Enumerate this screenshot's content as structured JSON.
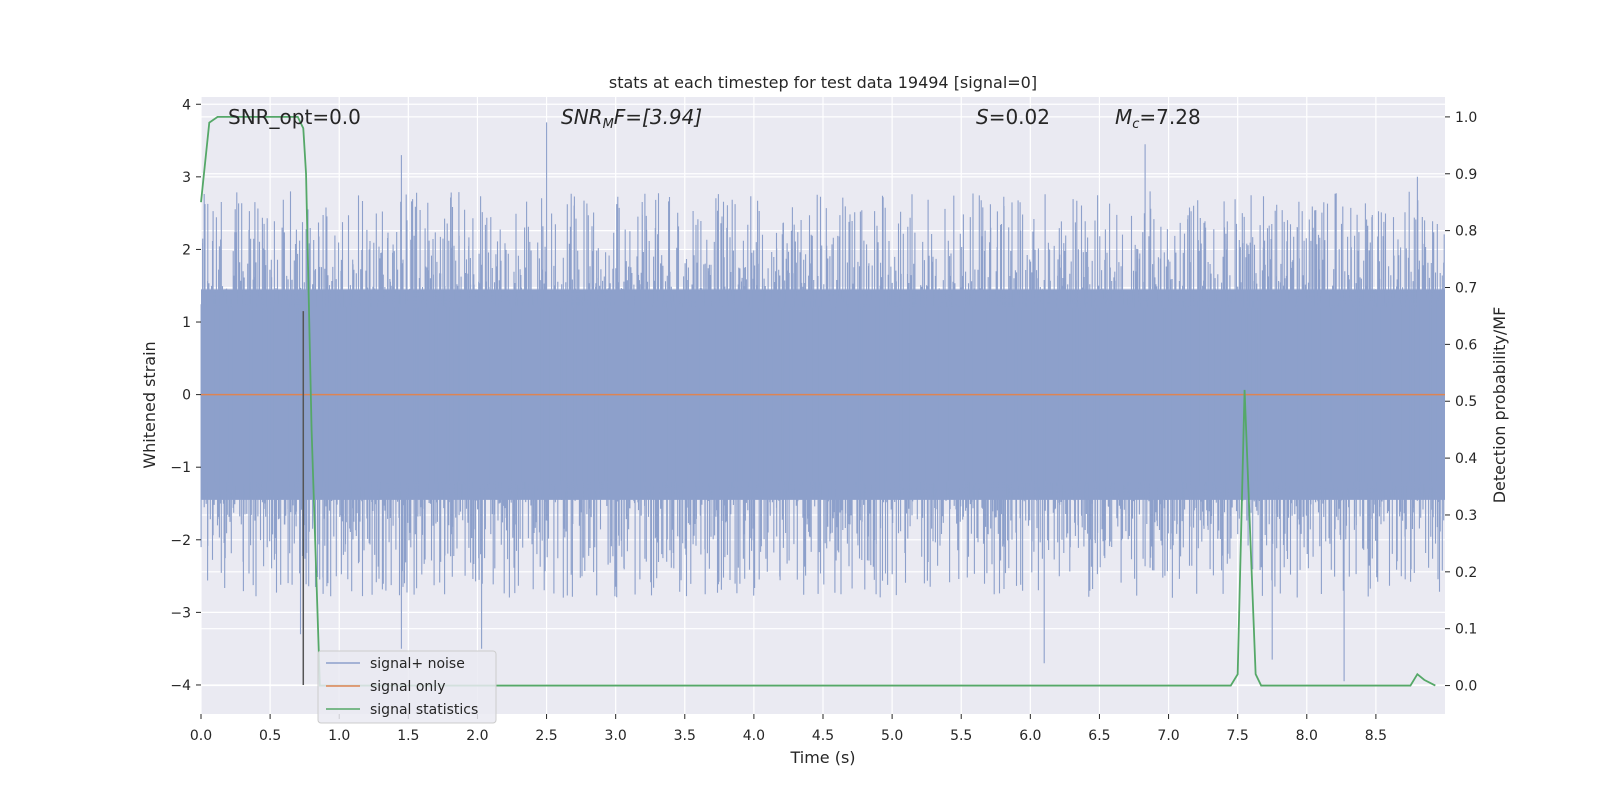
{
  "chart_data": {
    "type": "line",
    "title": "stats at each timestep for test data 19494 [signal=0]",
    "xlabel": "Time (s)",
    "ylabel": "Whitened strain",
    "y2label": "Detection probability/MF",
    "xlim": [
      0.0,
      9.0
    ],
    "ylim": [
      -4.4,
      4.1
    ],
    "y2lim": [
      -0.05,
      1.035
    ],
    "x_ticks": [
      "0.0",
      "0.5",
      "1.0",
      "1.5",
      "2.0",
      "2.5",
      "3.0",
      "3.5",
      "4.0",
      "4.5",
      "5.0",
      "5.5",
      "6.0",
      "6.5",
      "7.0",
      "7.5",
      "8.0",
      "8.5"
    ],
    "y_ticks": [
      "4",
      "3",
      "2",
      "1",
      "0",
      "−1",
      "−2",
      "−3",
      "−4"
    ],
    "y2_ticks": [
      "1.0",
      "0.9",
      "0.8",
      "0.7",
      "0.6",
      "0.5",
      "0.4",
      "0.3",
      "0.2",
      "0.1",
      "0.0"
    ],
    "grid": true,
    "legend_position": "lower-left",
    "annotations": {
      "snr_opt": "SNR_opt=0.0",
      "snr_mf_main": "SNR",
      "snr_mf_sub": "M",
      "snr_mf_rest": "F=[3.94]",
      "s_main": "S",
      "s_rest": "=0.02",
      "mc_main": "M",
      "mc_sub": "c",
      "mc_rest": "=7.28"
    },
    "series": [
      {
        "name": "signal+ noise",
        "color": "#8da0cb",
        "noise_spikes": {
          "typical_upper": 1.8,
          "typical_lower": -1.8,
          "max": 3.75,
          "min": -4.0,
          "notable_max": [
            [
              0.75,
              1.1
            ],
            [
              1.45,
              3.3
            ],
            [
              2.5,
              3.75
            ],
            [
              6.83,
              3.45
            ],
            [
              8.8,
              3.0
            ]
          ],
          "notable_min": [
            [
              0.72,
              -3.3
            ],
            [
              1.45,
              -3.5
            ],
            [
              2.03,
              -3.5
            ],
            [
              6.1,
              -3.7
            ],
            [
              7.75,
              -3.65
            ],
            [
              8.27,
              -3.95
            ]
          ]
        }
      },
      {
        "name": "signal only",
        "color": "#dd8452",
        "x": [
          0.0,
          9.0
        ],
        "y": [
          0.0,
          0.0
        ]
      },
      {
        "name": "signal statistics",
        "color": "#55a868",
        "axis": "right",
        "x": [
          0.0,
          0.06,
          0.12,
          0.2,
          0.3,
          0.4,
          0.5,
          0.6,
          0.7,
          0.74,
          0.76,
          0.8,
          0.86,
          0.9,
          1.0,
          2.0,
          3.0,
          4.0,
          5.0,
          6.0,
          7.0,
          7.45,
          7.5,
          7.55,
          7.63,
          7.67,
          7.7,
          8.0,
          8.1,
          8.5,
          8.75,
          8.8,
          8.85,
          8.93
        ],
        "y": [
          0.85,
          0.99,
          1.0,
          1.0,
          1.0,
          1.0,
          1.0,
          1.0,
          1.0,
          0.98,
          0.9,
          0.45,
          0.0,
          0.0,
          0.0,
          0.0,
          0.0,
          0.0,
          0.0,
          0.0,
          0.0,
          0.0,
          0.02,
          0.52,
          0.02,
          0.0,
          0.0,
          0.0,
          0.0,
          0.0,
          0.0,
          0.02,
          0.01,
          0.0
        ]
      }
    ],
    "marker_line": {
      "x": 0.74,
      "y": [
        -4.0,
        1.15
      ],
      "color": "#555555"
    }
  }
}
